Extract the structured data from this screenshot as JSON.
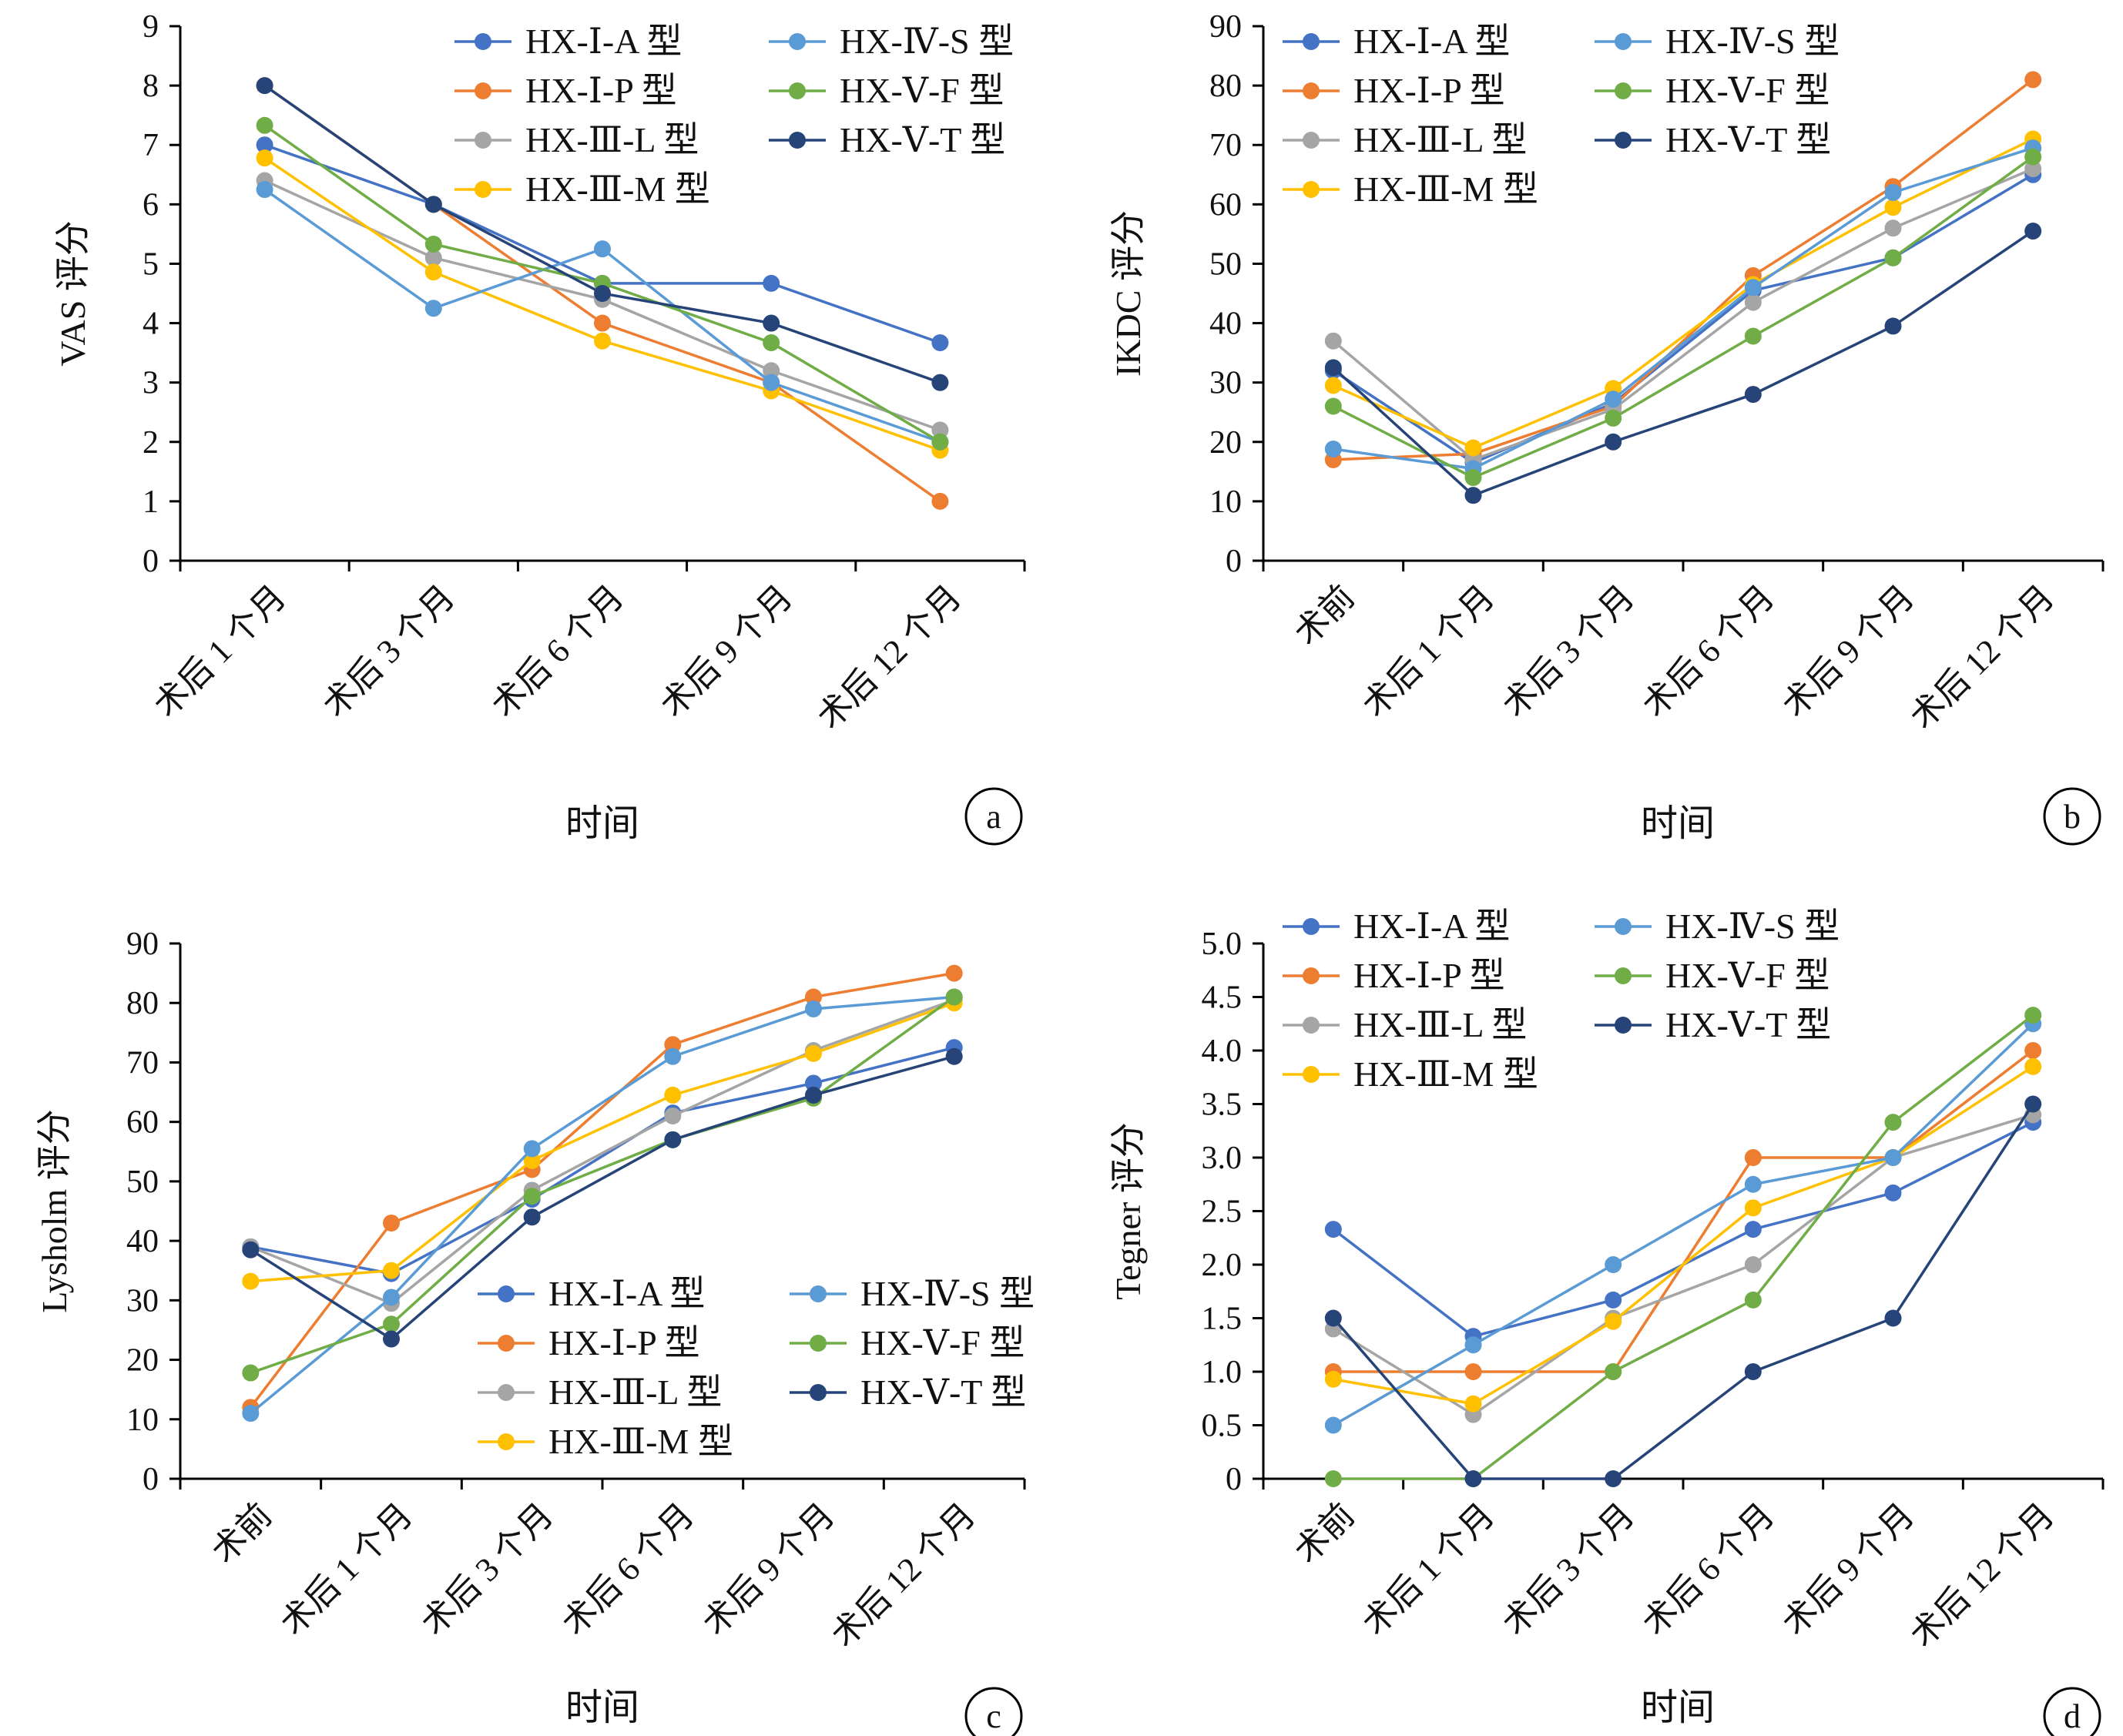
{
  "series_styles": [
    {
      "name": "HX-Ⅰ-A 型",
      "color": "#4472c4"
    },
    {
      "name": "HX-Ⅰ-P 型",
      "color": "#ed7d31"
    },
    {
      "name": "HX-Ⅲ-L 型",
      "color": "#a5a5a5"
    },
    {
      "name": "HX-Ⅲ-M 型",
      "color": "#ffc000"
    },
    {
      "name": "HX-Ⅳ-S 型",
      "color": "#5b9bd5"
    },
    {
      "name": "HX-Ⅴ-F 型",
      "color": "#70ad47"
    },
    {
      "name": "HX-Ⅴ-T 型",
      "color": "#264478"
    }
  ],
  "chart_data": [
    {
      "panel": "a",
      "type": "line",
      "xlabel": "时间",
      "ylabel": "VAS 评分",
      "ylim": [
        0,
        9
      ],
      "yticks": [
        0,
        1,
        2,
        3,
        4,
        5,
        6,
        7,
        8,
        9
      ],
      "grid": false,
      "legend_position": "top-right",
      "categories": [
        "术后 1 个月",
        "术后 3 个月",
        "术后 6 个月",
        "术后 9 个月",
        "术后 12 个月"
      ],
      "series": [
        {
          "name": "HX-Ⅰ-A 型",
          "values": [
            7.0,
            6.0,
            4.67,
            4.67,
            3.67
          ]
        },
        {
          "name": "HX-Ⅰ-P 型",
          "values": [
            8.0,
            6.0,
            4.0,
            3.0,
            1.0
          ]
        },
        {
          "name": "HX-Ⅲ-L 型",
          "values": [
            6.4,
            5.1,
            4.4,
            3.2,
            2.2
          ]
        },
        {
          "name": "HX-Ⅲ-M 型",
          "values": [
            6.78,
            4.86,
            3.7,
            2.86,
            1.86
          ]
        },
        {
          "name": "HX-Ⅳ-S 型",
          "values": [
            6.25,
            4.25,
            5.25,
            3.0,
            2.0
          ]
        },
        {
          "name": "HX-Ⅴ-F 型",
          "values": [
            7.33,
            5.33,
            4.67,
            3.67,
            2.0
          ]
        },
        {
          "name": "HX-Ⅴ-T 型",
          "values": [
            8.0,
            6.0,
            4.5,
            4.0,
            3.0
          ]
        }
      ]
    },
    {
      "panel": "b",
      "type": "line",
      "xlabel": "时间",
      "ylabel": "IKDC 评分",
      "ylim": [
        0,
        90
      ],
      "yticks": [
        0,
        10,
        20,
        30,
        40,
        50,
        60,
        70,
        80,
        90
      ],
      "grid": false,
      "legend_position": "top-left",
      "categories": [
        "术前",
        "术后 1 个月",
        "术后 3 个月",
        "术后 6 个月",
        "术后 9 个月",
        "术后 12 个月"
      ],
      "series": [
        {
          "name": "HX-Ⅰ-A 型",
          "values": [
            32.0,
            16.5,
            26.5,
            45.5,
            51.0,
            65.0
          ]
        },
        {
          "name": "HX-Ⅰ-P 型",
          "values": [
            17.0,
            18.0,
            26.0,
            48.0,
            63.0,
            81.0
          ]
        },
        {
          "name": "HX-Ⅲ-L 型",
          "values": [
            37.0,
            17.0,
            25.5,
            43.5,
            56.0,
            66.0
          ]
        },
        {
          "name": "HX-Ⅲ-M 型",
          "values": [
            29.5,
            19.0,
            29.0,
            46.5,
            59.5,
            71.0
          ]
        },
        {
          "name": "HX-Ⅳ-S 型",
          "values": [
            18.8,
            15.5,
            27.2,
            46.0,
            62.0,
            69.5
          ]
        },
        {
          "name": "HX-Ⅴ-F 型",
          "values": [
            26.0,
            14.0,
            24.0,
            37.8,
            51.0,
            68.0
          ]
        },
        {
          "name": "HX-Ⅴ-T 型",
          "values": [
            32.5,
            11.0,
            20.0,
            28.0,
            39.5,
            55.5
          ]
        }
      ]
    },
    {
      "panel": "c",
      "type": "line",
      "xlabel": "时间",
      "ylabel": "Lysholm 评分",
      "ylim": [
        0,
        90
      ],
      "yticks": [
        0,
        10,
        20,
        30,
        40,
        50,
        60,
        70,
        80,
        90
      ],
      "grid": false,
      "legend_position": "bottom-right",
      "categories": [
        "术前",
        "术后 1 个月",
        "术后 3 个月",
        "术后 6 个月",
        "术后 9 个月",
        "术后 12 个月"
      ],
      "series": [
        {
          "name": "HX-Ⅰ-A 型",
          "values": [
            39.0,
            34.5,
            47.0,
            61.5,
            66.5,
            72.5
          ]
        },
        {
          "name": "HX-Ⅰ-P 型",
          "values": [
            12.0,
            43.0,
            52.0,
            73.0,
            81.0,
            85.0
          ]
        },
        {
          "name": "HX-Ⅲ-L 型",
          "values": [
            39.0,
            29.5,
            48.5,
            61.0,
            72.0,
            80.5
          ]
        },
        {
          "name": "HX-Ⅲ-M 型",
          "values": [
            33.2,
            35.0,
            53.5,
            64.5,
            71.5,
            80.0
          ]
        },
        {
          "name": "HX-Ⅳ-S 型",
          "values": [
            11.0,
            30.5,
            55.5,
            71.0,
            79.0,
            81.0
          ]
        },
        {
          "name": "HX-Ⅴ-F 型",
          "values": [
            17.8,
            26.0,
            47.5,
            57.0,
            64.0,
            81.0
          ]
        },
        {
          "name": "HX-Ⅴ-T 型",
          "values": [
            38.5,
            23.5,
            44.0,
            57.0,
            64.5,
            71.0
          ]
        }
      ]
    },
    {
      "panel": "d",
      "type": "line",
      "xlabel": "时间",
      "ylabel": "Tegner 评分",
      "ylim": [
        0,
        5.0
      ],
      "yticks": [
        "0",
        "0.5",
        "1.0",
        "1.5",
        "2.0",
        "2.5",
        "3.0",
        "3.5",
        "4.0",
        "4.5",
        "5.0"
      ],
      "grid": false,
      "legend_position": "top-left",
      "categories": [
        "术前",
        "术后 1 个月",
        "术后 3 个月",
        "术后 6 个月",
        "术后 9 个月",
        "术后 12 个月"
      ],
      "series": [
        {
          "name": "HX-Ⅰ-A 型",
          "values": [
            2.33,
            1.33,
            1.67,
            2.33,
            2.67,
            3.33
          ]
        },
        {
          "name": "HX-Ⅰ-P 型",
          "values": [
            1.0,
            1.0,
            1.0,
            3.0,
            3.0,
            4.0
          ]
        },
        {
          "name": "HX-Ⅲ-L 型",
          "values": [
            1.4,
            0.6,
            1.5,
            2.0,
            3.0,
            3.4
          ]
        },
        {
          "name": "HX-Ⅲ-M 型",
          "values": [
            0.93,
            0.7,
            1.47,
            2.53,
            3.0,
            3.85
          ]
        },
        {
          "name": "HX-Ⅳ-S 型",
          "values": [
            0.5,
            1.25,
            2.0,
            2.75,
            3.0,
            4.25
          ]
        },
        {
          "name": "HX-Ⅴ-F 型",
          "values": [
            0.0,
            0.0,
            1.0,
            1.67,
            3.33,
            4.33
          ]
        },
        {
          "name": "HX-Ⅴ-T 型",
          "values": [
            1.5,
            0.0,
            0.0,
            1.0,
            1.5,
            3.5
          ]
        }
      ]
    }
  ]
}
